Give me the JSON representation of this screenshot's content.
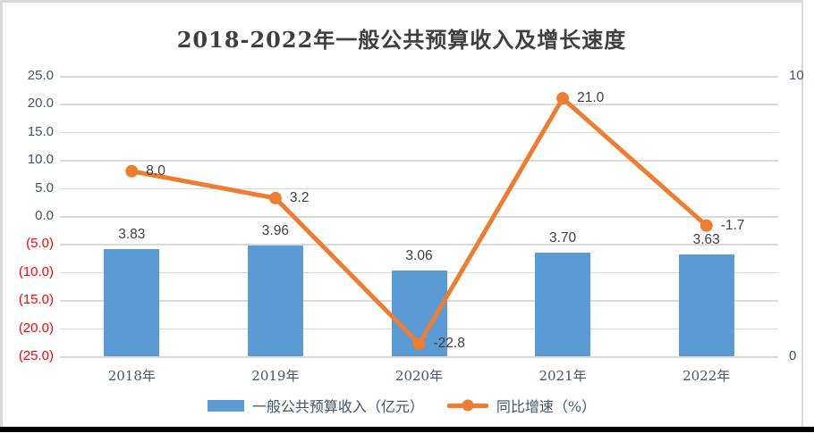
{
  "title": "2018-2022年一般公共预算收入及增长速度",
  "colors": {
    "bar": "#5B9BD5",
    "line": "#ED7D31",
    "gridline": "#D9D9D9",
    "axis_text": "#44546A",
    "negative_tick": "#FF0000",
    "data_label": "#404040",
    "frame_border": "#D9D9D9",
    "bottom_bar": "#000000"
  },
  "chart_data": {
    "type": "combo_bar_line",
    "title": "2018-2022年一般公共预算收入及增长速度",
    "categories": [
      "2018年",
      "2019年",
      "2020年",
      "2021年",
      "2022年"
    ],
    "series": [
      {
        "name": "一般公共预算收入（亿元）",
        "type": "bar",
        "axis": "right",
        "color": "#5B9BD5",
        "values": [
          3.83,
          3.96,
          3.06,
          3.7,
          3.63
        ],
        "labels": [
          "3.83",
          "3.96",
          "3.06",
          "3.70",
          "3.63"
        ]
      },
      {
        "name": "同比增速（%）",
        "type": "line",
        "axis": "left",
        "color": "#ED7D31",
        "values": [
          8.0,
          3.2,
          -22.8,
          21.0,
          -1.7
        ],
        "labels": [
          "8.0",
          "3.2",
          "-22.8",
          "21.0",
          "-1.7"
        ]
      }
    ],
    "left_axis": {
      "min": -25,
      "max": 25,
      "step": 5,
      "tick_labels": [
        "25.0",
        "20.0",
        "15.0",
        "10.0",
        "5.0",
        "0.0",
        "(5.0)",
        "(10.0)",
        "(15.0)",
        "(20.0)",
        "(25.0)"
      ],
      "negative_in_red_parentheses": true
    },
    "right_axis": {
      "min": 0,
      "max": 10,
      "tick_labels": [
        "10",
        "0"
      ]
    },
    "grid": true,
    "legend_position": "bottom"
  },
  "legend": {
    "items": [
      {
        "label": "一般公共预算收入（亿元）",
        "swatch": "bar"
      },
      {
        "label": "同比增速（%）",
        "swatch": "line-marker"
      }
    ]
  }
}
